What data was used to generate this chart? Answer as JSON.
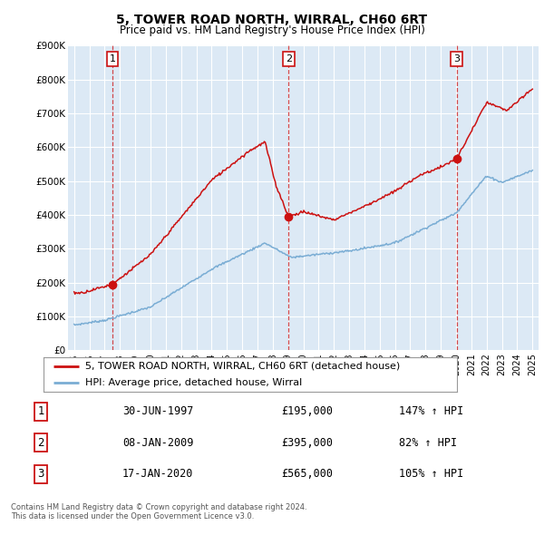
{
  "title": "5, TOWER ROAD NORTH, WIRRAL, CH60 6RT",
  "subtitle": "Price paid vs. HM Land Registry's House Price Index (HPI)",
  "ylim": [
    0,
    900000
  ],
  "yticks": [
    0,
    100000,
    200000,
    300000,
    400000,
    500000,
    600000,
    700000,
    800000,
    900000
  ],
  "ytick_labels": [
    "£0",
    "£100K",
    "£200K",
    "£300K",
    "£400K",
    "£500K",
    "£600K",
    "£700K",
    "£800K",
    "£900K"
  ],
  "fig_bg_color": "#ffffff",
  "plot_bg_color": "#dce9f5",
  "grid_color": "#ffffff",
  "sale_color": "#cc1111",
  "hpi_color": "#7aadd4",
  "sale_legend": "5, TOWER ROAD NORTH, WIRRAL, CH60 6RT (detached house)",
  "hpi_legend": "HPI: Average price, detached house, Wirral",
  "transactions": [
    {
      "num": 1,
      "date": "30-JUN-1997",
      "price": 195000,
      "pct": "147%",
      "x": 1997.5
    },
    {
      "num": 2,
      "date": "08-JAN-2009",
      "price": 395000,
      "pct": "82%",
      "x": 2009.04
    },
    {
      "num": 3,
      "date": "17-JAN-2020",
      "price": 565000,
      "pct": "105%",
      "x": 2020.04
    }
  ],
  "footer_line1": "Contains HM Land Registry data © Crown copyright and database right 2024.",
  "footer_line2": "This data is licensed under the Open Government Licence v3.0.",
  "xlim": [
    1994.6,
    2025.4
  ],
  "xticks_start": 1995,
  "xticks_end": 2025
}
